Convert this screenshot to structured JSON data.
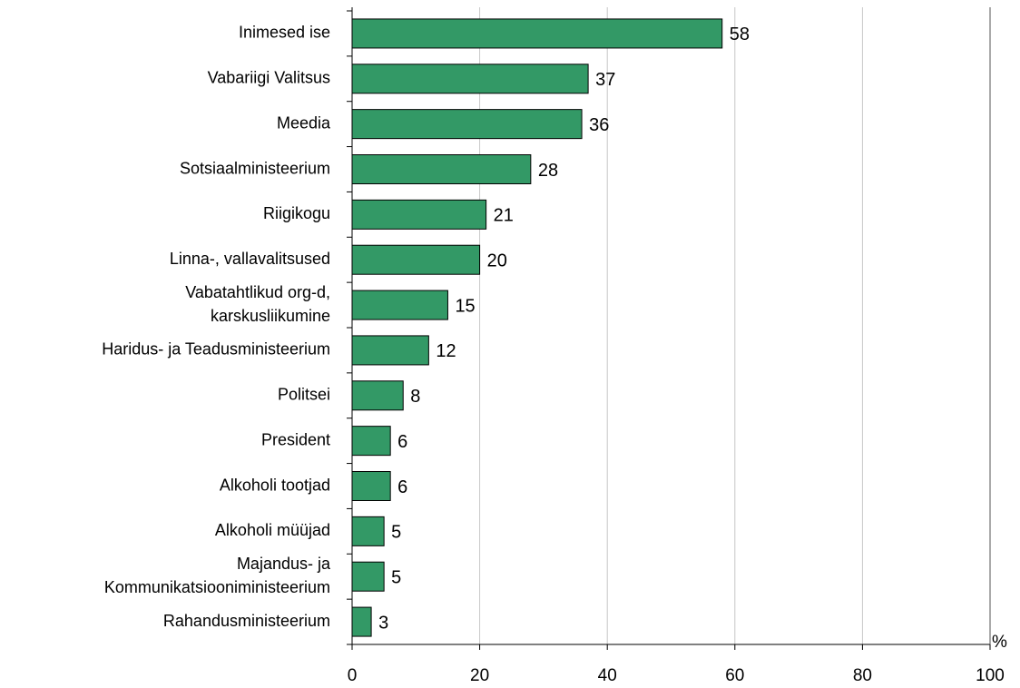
{
  "chart_data": {
    "type": "bar",
    "orientation": "horizontal",
    "categories": [
      "Inimesed ise",
      "Vabariigi Valitsus",
      "Meedia",
      "Sotsiaalministeerium",
      "Riigikogu",
      "Linna-, vallavalitsused",
      [
        "Vabatahtlikud org-d,",
        "karskusliikumine"
      ],
      "Haridus- ja Teadusministeerium",
      "Politsei",
      "President",
      "Alkoholi tootjad",
      "Alkoholi müüjad",
      [
        "Majandus- ja",
        "Kommunikatsiooniministeerium"
      ],
      "Rahandusministeerium"
    ],
    "values": [
      58,
      37,
      36,
      28,
      21,
      20,
      15,
      12,
      8,
      6,
      6,
      5,
      5,
      3
    ],
    "color": "#339966",
    "xlim": [
      0,
      100
    ],
    "xticks": [
      0,
      20,
      40,
      60,
      80,
      100
    ],
    "x_label": "%",
    "grid": true
  }
}
